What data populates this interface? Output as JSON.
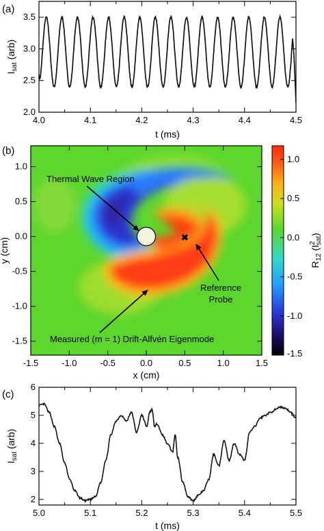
{
  "chart_data": [
    {
      "panel": "(a)",
      "type": "line",
      "xlabel": "t (ms)",
      "ylabel_main": "I",
      "ylabel_sub": "sat",
      "ylabel_rest": " (arb)",
      "xlim": [
        4.0,
        4.5
      ],
      "ylim": [
        2.0,
        3.75
      ],
      "xticks": [
        "4.0",
        "4.1",
        "4.2",
        "4.3",
        "4.4",
        "4.5"
      ],
      "yticks": [
        "2.0",
        "2.5",
        "3.0",
        "3.5"
      ],
      "grid": false,
      "signal": {
        "shape": "sinusoid",
        "period_ms": 0.0303,
        "center": 2.95,
        "amplitude": 0.55,
        "start_value": 2.6,
        "end_value": 2.15
      }
    },
    {
      "panel": "(b)",
      "type": "heatmap",
      "xlabel": "x (cm)",
      "ylabel": "y (cm)",
      "xlim": [
        -1.5,
        1.5
      ],
      "ylim": [
        -1.7,
        1.3
      ],
      "xticks": [
        "-1.5",
        "-1.0",
        "-0.5",
        "0.0",
        "0.5",
        "1.0",
        "1.5"
      ],
      "yticks": [
        "1.0",
        "0.5",
        "0.0",
        "-0.5",
        "-1.0",
        "-1.5"
      ],
      "colorbar": {
        "label_main": "R",
        "label_sub": "12",
        "label_rest_open": " (I",
        "label_sup": "2",
        "label_sub2": "sat",
        "label_close": ")",
        "range": [
          -1.5,
          1.0
        ],
        "ticks": [
          "1.0",
          "0.5",
          "0.0",
          "-0.5",
          "-1.0",
          "-1.5"
        ]
      },
      "annotations": {
        "thermal_wave": "Thermal Wave Region",
        "reference_1": "Reference",
        "reference_2": "Probe",
        "eigenmode": "Measured (m = 1) Drift-Alfvén Eigenmode"
      },
      "reference_probe_position": [
        0.5,
        0.0
      ],
      "thermal_region_center": [
        0.0,
        0.0
      ],
      "thermal_region_radius": 0.12
    },
    {
      "panel": "(c)",
      "type": "line",
      "xlabel": "t (ms)",
      "ylabel_main": "I",
      "ylabel_sub": "sat",
      "ylabel_rest": " (arb)",
      "xlim": [
        5.0,
        5.5
      ],
      "ylim": [
        1.8,
        6.0
      ],
      "xticks": [
        "5.0",
        "5.1",
        "5.2",
        "5.3",
        "5.4",
        "5.5"
      ],
      "yticks": [
        "2",
        "3",
        "4",
        "5",
        "6"
      ],
      "grid": false,
      "x": [
        5.0,
        5.01,
        5.02,
        5.03,
        5.04,
        5.05,
        5.06,
        5.07,
        5.08,
        5.09,
        5.1,
        5.11,
        5.12,
        5.13,
        5.14,
        5.15,
        5.16,
        5.17,
        5.18,
        5.19,
        5.2,
        5.21,
        5.215,
        5.22,
        5.225,
        5.23,
        5.24,
        5.25,
        5.26,
        5.265,
        5.27,
        5.28,
        5.29,
        5.3,
        5.31,
        5.32,
        5.33,
        5.34,
        5.35,
        5.36,
        5.37,
        5.38,
        5.39,
        5.4,
        5.41,
        5.42,
        5.43,
        5.44,
        5.45,
        5.46,
        5.47,
        5.48,
        5.49,
        5.5
      ],
      "y": [
        5.35,
        5.4,
        5.1,
        4.6,
        4.0,
        3.3,
        2.7,
        2.3,
        2.05,
        1.95,
        2.0,
        2.1,
        2.6,
        3.4,
        4.3,
        4.8,
        5.0,
        4.8,
        5.1,
        4.4,
        5.0,
        4.6,
        5.1,
        5.2,
        4.6,
        4.7,
        4.3,
        4.0,
        3.7,
        4.3,
        3.5,
        2.6,
        2.1,
        1.95,
        2.15,
        2.3,
        2.7,
        3.6,
        3.2,
        4.1,
        3.4,
        4.0,
        3.6,
        3.4,
        4.4,
        4.6,
        4.9,
        5.0,
        5.1,
        5.2,
        5.3,
        5.25,
        5.1,
        4.9
      ]
    }
  ]
}
